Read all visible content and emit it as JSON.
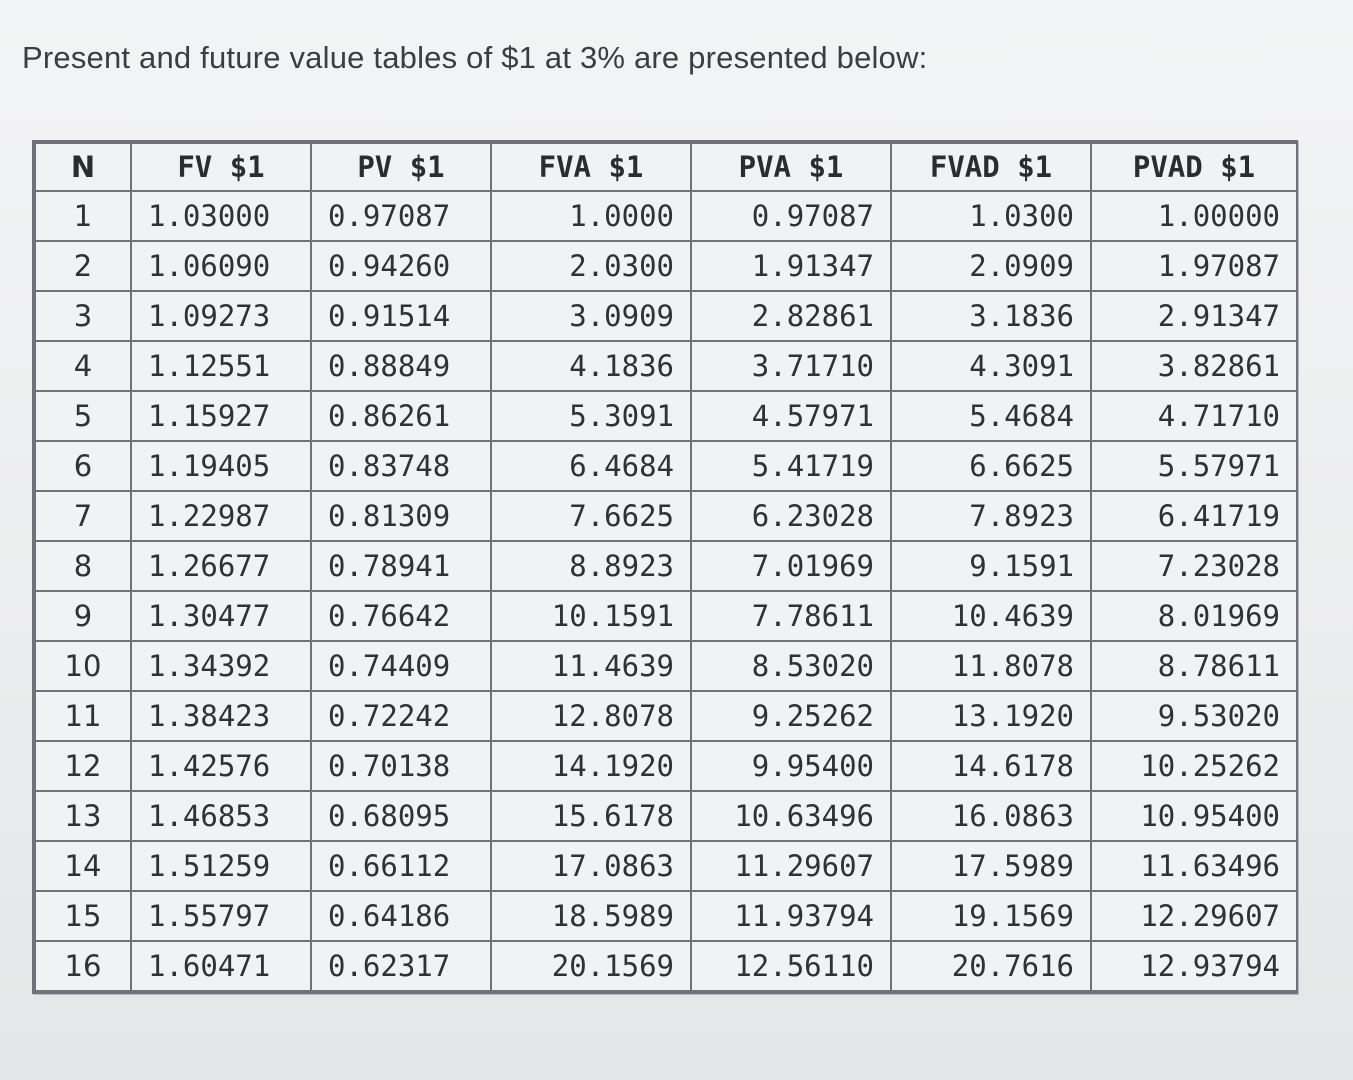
{
  "intro_text": "Present and future value tables of $1 at 3% are presented below:",
  "table": {
    "headers": [
      "N",
      "FV $1",
      "PV $1",
      "FVA $1",
      "PVA $1",
      "FVAD $1",
      "PVAD $1"
    ],
    "rows": [
      [
        "1",
        "1.03000",
        "0.97087",
        "1.0000",
        "0.97087",
        "1.0300",
        "1.00000"
      ],
      [
        "2",
        "1.06090",
        "0.94260",
        "2.0300",
        "1.91347",
        "2.0909",
        "1.97087"
      ],
      [
        "3",
        "1.09273",
        "0.91514",
        "3.0909",
        "2.82861",
        "3.1836",
        "2.91347"
      ],
      [
        "4",
        "1.12551",
        "0.88849",
        "4.1836",
        "3.71710",
        "4.3091",
        "3.82861"
      ],
      [
        "5",
        "1.15927",
        "0.86261",
        "5.3091",
        "4.57971",
        "5.4684",
        "4.71710"
      ],
      [
        "6",
        "1.19405",
        "0.83748",
        "6.4684",
        "5.41719",
        "6.6625",
        "5.57971"
      ],
      [
        "7",
        "1.22987",
        "0.81309",
        "7.6625",
        "6.23028",
        "7.8923",
        "6.41719"
      ],
      [
        "8",
        "1.26677",
        "0.78941",
        "8.8923",
        "7.01969",
        "9.1591",
        "7.23028"
      ],
      [
        "9",
        "1.30477",
        "0.76642",
        "10.1591",
        "7.78611",
        "10.4639",
        "8.01969"
      ],
      [
        "10",
        "1.34392",
        "0.74409",
        "11.4639",
        "8.53020",
        "11.8078",
        "8.78611"
      ],
      [
        "11",
        "1.38423",
        "0.72242",
        "12.8078",
        "9.25262",
        "13.1920",
        "9.53020"
      ],
      [
        "12",
        "1.42576",
        "0.70138",
        "14.1920",
        "9.95400",
        "14.6178",
        "10.25262"
      ],
      [
        "13",
        "1.46853",
        "0.68095",
        "15.6178",
        "10.63496",
        "16.0863",
        "10.95400"
      ],
      [
        "14",
        "1.51259",
        "0.66112",
        "17.0863",
        "11.29607",
        "17.5989",
        "11.63496"
      ],
      [
        "15",
        "1.55797",
        "0.64186",
        "18.5989",
        "11.93794",
        "19.1569",
        "12.29607"
      ],
      [
        "16",
        "1.60471",
        "0.62317",
        "20.1569",
        "12.56110",
        "20.7616",
        "12.93794"
      ]
    ]
  }
}
